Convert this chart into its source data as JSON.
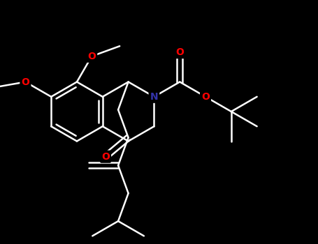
{
  "background_color": "#000000",
  "bond_color": "#ffffff",
  "atom_colors": {
    "O": "#ff0000",
    "N": "#3333aa",
    "C": "#ffffff"
  },
  "bond_width": 1.8,
  "font_size": 10,
  "figsize": [
    4.55,
    3.5
  ],
  "dpi": 100,
  "xlim": [
    0,
    9.1
  ],
  "ylim": [
    0,
    7.0
  ]
}
